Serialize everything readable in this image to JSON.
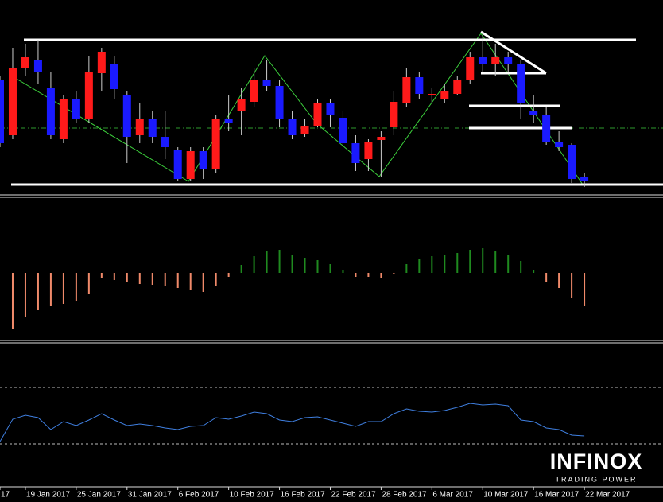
{
  "chart_data": [
    {
      "type": "candlestick",
      "up_color": "#ff1a1a",
      "down_color": "#1a1aff",
      "wick_color": "#cccccc",
      "ylim": [
        0,
        245
      ],
      "open": [
        145,
        75,
        160,
        170,
        135,
        70,
        120,
        95,
        153,
        165,
        125,
        75,
        95,
        73,
        57,
        20,
        55,
        33,
        95,
        105,
        117,
        145,
        137,
        95,
        77,
        87,
        115,
        97,
        65,
        45,
        69,
        85,
        115,
        148,
        125,
        120,
        127,
        145,
        173,
        165,
        173,
        165,
        105,
        100,
        67,
        63,
        23
      ],
      "close": [
        65,
        160,
        173,
        155,
        75,
        120,
        95,
        155,
        180,
        133,
        73,
        95,
        73,
        60,
        20,
        55,
        33,
        95,
        90,
        120,
        145,
        137,
        95,
        75,
        87,
        115,
        100,
        65,
        40,
        67,
        73,
        117,
        148,
        127,
        127,
        130,
        145,
        173,
        165,
        173,
        165,
        115,
        100,
        67,
        60,
        20,
        17
      ],
      "high": [
        150,
        185,
        190,
        195,
        155,
        125,
        130,
        175,
        185,
        175,
        130,
        115,
        105,
        105,
        60,
        60,
        60,
        100,
        125,
        135,
        160,
        170,
        145,
        105,
        95,
        120,
        120,
        105,
        75,
        70,
        80,
        130,
        160,
        155,
        135,
        140,
        150,
        180,
        200,
        190,
        180,
        170,
        125,
        110,
        80,
        65,
        27
      ],
      "low": [
        60,
        70,
        150,
        140,
        70,
        65,
        90,
        90,
        130,
        120,
        40,
        65,
        65,
        45,
        17,
        17,
        20,
        27,
        80,
        75,
        110,
        130,
        85,
        70,
        73,
        85,
        85,
        60,
        30,
        30,
        23,
        75,
        110,
        120,
        115,
        115,
        125,
        140,
        155,
        150,
        155,
        95,
        90,
        63,
        55,
        15,
        10
      ]
    },
    {
      "type": "bar",
      "pos_color": "#1f8a1f",
      "neg_color": "#f08a6a",
      "ylim": [
        -85,
        95
      ],
      "values": [
        null,
        -70,
        -55,
        -47,
        -42,
        -39,
        -35,
        -27,
        -7,
        -9,
        -12,
        -14,
        -15,
        -17,
        -19,
        -22,
        -24,
        -17,
        -5,
        10,
        21,
        28,
        29,
        23,
        19,
        16,
        11,
        3,
        -5,
        -5,
        -7,
        -1,
        11,
        17,
        21,
        23,
        25,
        29,
        31,
        28,
        23,
        15,
        3,
        -12,
        -19,
        -32,
        -42
      ]
    },
    {
      "type": "line",
      "color": "#3f7fe0",
      "ylim": [
        -10,
        169
      ],
      "values": [
        45,
        73,
        78,
        75,
        60,
        70,
        65,
        72,
        80,
        72,
        65,
        67,
        65,
        62,
        60,
        64,
        65,
        75,
        73,
        77,
        82,
        80,
        72,
        70,
        75,
        76,
        72,
        68,
        64,
        70,
        70,
        80,
        86,
        83,
        82,
        84,
        88,
        93,
        91,
        92,
        90,
        72,
        70,
        62,
        60,
        53,
        52
      ],
      "categories": [
        "17",
        null,
        "19 Jan 2017",
        null,
        null,
        null,
        "25 Jan 2017",
        null,
        null,
        null,
        "31 Jan 2017",
        null,
        null,
        null,
        "6 Feb 2017",
        null,
        null,
        null,
        "10 Feb 2017",
        null,
        null,
        null,
        "16 Feb 2017",
        null,
        null,
        null,
        "22 Feb 2017",
        null,
        null,
        null,
        "28 Feb 2017",
        null,
        null,
        null,
        "6 Mar 2017",
        null,
        null,
        null,
        "10 Mar 2017",
        null,
        null,
        null,
        "16 Mar 2017",
        null,
        null,
        null,
        "22 Mar 2017"
      ]
    }
  ],
  "logo": {
    "name": "INFINOX",
    "tagline": "TRADING POWER"
  }
}
